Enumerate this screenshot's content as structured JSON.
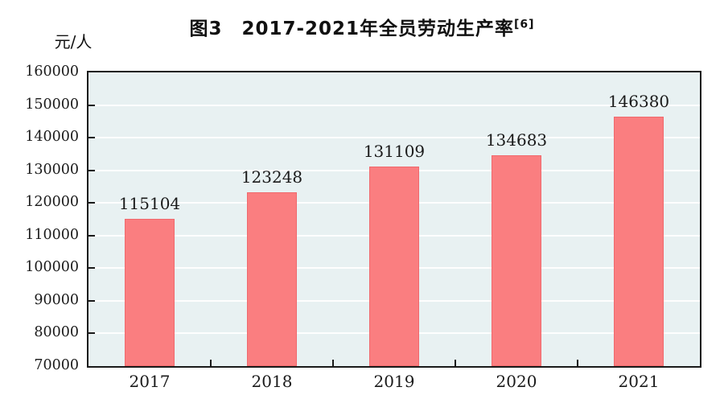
{
  "title": {
    "text": "图3　2017-2021年全员劳动生产率",
    "superscript": "[6]"
  },
  "unit_label": "元/人",
  "chart_data": {
    "type": "bar",
    "title": "图3 2017-2021年全员劳动生产率[6]",
    "categories": [
      "2017",
      "2018",
      "2019",
      "2020",
      "2021"
    ],
    "values": [
      115104,
      123248,
      131109,
      134683,
      146380
    ],
    "xlabel": "",
    "ylabel": "元/人",
    "ylim": [
      70000,
      160000
    ],
    "ytick_step": 10000,
    "yticks": [
      70000,
      80000,
      90000,
      100000,
      110000,
      120000,
      130000,
      140000,
      150000,
      160000
    ],
    "grid": true,
    "legend": "none",
    "data_labels": true
  },
  "colors": {
    "bar_fill": "#fa7e80",
    "bar_border": "#f0696d",
    "plot_background": "#e8f1f2",
    "gridline": "#ffffff",
    "axis": "#1a1a1a",
    "text": "#111111"
  }
}
